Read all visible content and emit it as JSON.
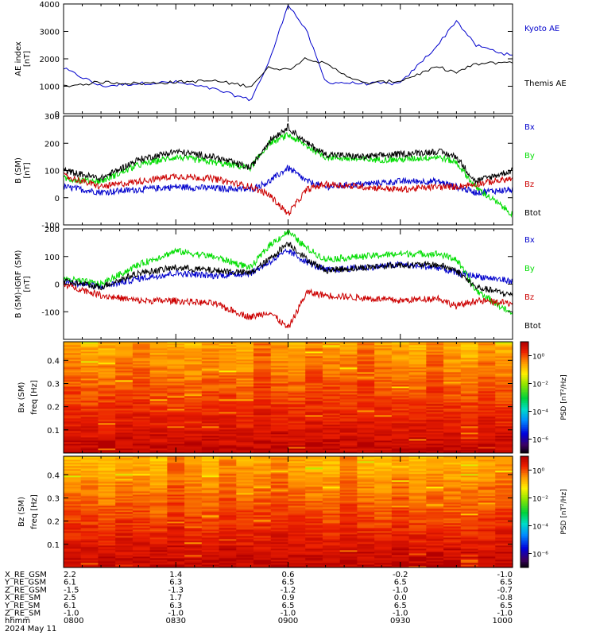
{
  "chart_data": [
    {
      "type": "line",
      "ylabel": "AE index",
      "yunit": "[nT]",
      "ylim": [
        0,
        4000
      ],
      "yticks": [
        "0",
        "1000",
        "2000",
        "3000",
        "4000"
      ],
      "x": [
        "0800",
        "0810",
        "0820",
        "0830",
        "0840",
        "0850",
        "0855",
        "0900",
        "0905",
        "0910",
        "0920",
        "0930",
        "0940",
        "0945",
        "0950",
        "1000"
      ],
      "series": [
        {
          "name": "Kyoto AE",
          "color": "#0000cc",
          "values": [
            1650,
            1000,
            1100,
            1150,
            900,
            500,
            1900,
            4000,
            3000,
            1150,
            1100,
            1100,
            2500,
            3400,
            2500,
            2100
          ]
        },
        {
          "name": "Themis AE",
          "color": "#000000",
          "values": [
            1000,
            1150,
            1100,
            1150,
            1200,
            1000,
            1700,
            1600,
            2050,
            1800,
            1100,
            1200,
            1700,
            1500,
            1800,
            1900
          ]
        }
      ]
    },
    {
      "type": "line",
      "ylabel": "B (SM)",
      "yunit": "[nT]",
      "ylim": [
        -100,
        300
      ],
      "yticks": [
        "-100",
        "0",
        "100",
        "200",
        "300"
      ],
      "x": [
        "0800",
        "0810",
        "0820",
        "0830",
        "0840",
        "0850",
        "0855",
        "0900",
        "0905",
        "0910",
        "0920",
        "0930",
        "0940",
        "0945",
        "0950",
        "1000"
      ],
      "series": [
        {
          "name": "Bx",
          "color": "#0000cc",
          "values": [
            40,
            20,
            30,
            40,
            35,
            30,
            60,
            110,
            60,
            40,
            50,
            60,
            60,
            40,
            20,
            30
          ]
        },
        {
          "name": "By",
          "color": "#00dd00",
          "values": [
            70,
            60,
            120,
            150,
            130,
            110,
            200,
            230,
            190,
            150,
            140,
            140,
            150,
            130,
            40,
            -60
          ]
        },
        {
          "name": "Bz",
          "color": "#cc0000",
          "values": [
            80,
            40,
            60,
            80,
            70,
            40,
            10,
            -60,
            30,
            50,
            40,
            30,
            40,
            40,
            50,
            70
          ]
        },
        {
          "name": "Btot",
          "color": "#000000",
          "values": [
            100,
            70,
            140,
            170,
            150,
            110,
            210,
            260,
            200,
            160,
            150,
            160,
            170,
            150,
            60,
            100
          ]
        }
      ]
    },
    {
      "type": "line",
      "ylabel": "B (SM)-IGRF (SM)",
      "yunit": "[nT]",
      "ylim": [
        -200,
        200
      ],
      "yticks": [
        "-100",
        "0",
        "100",
        "200"
      ],
      "x": [
        "0800",
        "0810",
        "0820",
        "0830",
        "0840",
        "0850",
        "0855",
        "0900",
        "0905",
        "0910",
        "0920",
        "0930",
        "0940",
        "0945",
        "0950",
        "1000"
      ],
      "series": [
        {
          "name": "Bx",
          "color": "#0000cc",
          "values": [
            10,
            -10,
            20,
            40,
            30,
            40,
            80,
            120,
            80,
            50,
            60,
            70,
            60,
            40,
            30,
            10
          ]
        },
        {
          "name": "By",
          "color": "#00dd00",
          "values": [
            20,
            0,
            70,
            120,
            100,
            60,
            140,
            190,
            130,
            90,
            100,
            110,
            110,
            90,
            -20,
            -110
          ]
        },
        {
          "name": "Bz",
          "color": "#cc0000",
          "values": [
            0,
            -40,
            -60,
            -60,
            -70,
            -120,
            -100,
            -160,
            -30,
            -40,
            -50,
            -60,
            -50,
            -80,
            -60,
            -70
          ]
        },
        {
          "name": "Btot",
          "color": "#000000",
          "values": [
            10,
            -10,
            40,
            60,
            50,
            40,
            90,
            150,
            90,
            50,
            60,
            70,
            70,
            50,
            -10,
            -40
          ]
        }
      ]
    },
    {
      "type": "heatmap",
      "ylabel": "Bx (SM)",
      "yunit2": "freq",
      "yunit": "[Hz]",
      "ylim": [
        0,
        0.48
      ],
      "yticks": [
        "0.1",
        "0.2",
        "0.3",
        "0.4"
      ],
      "colorbar_label": "PSD [nT²/Hz]",
      "colorbar_ticks": [
        "10⁰",
        "10⁻²",
        "10⁻⁴",
        "10⁻⁶"
      ],
      "colorbar_tick_exps": [
        0,
        -2,
        -4,
        -6
      ],
      "colorbar_range_exp": [
        -7,
        1
      ]
    },
    {
      "type": "heatmap",
      "ylabel": "Bz (SM)",
      "yunit2": "freq",
      "yunit": "[Hz]",
      "ylim": [
        0,
        0.48
      ],
      "yticks": [
        "0.1",
        "0.2",
        "0.3",
        "0.4"
      ],
      "colorbar_label": "PSD [nT²/Hz]",
      "colorbar_ticks": [
        "10⁰",
        "10⁻²",
        "10⁻⁴",
        "10⁻⁶"
      ],
      "colorbar_tick_exps": [
        0,
        -2,
        -4,
        -6
      ],
      "colorbar_range_exp": [
        -7,
        1
      ]
    }
  ],
  "orbit_table": {
    "labels": [
      "X_RE_GSM",
      "Y_RE_GSM",
      "Z_RE_GSM",
      "X_RE_SM",
      "Y_RE_SM",
      "Z_RE_SM",
      "hhmm"
    ],
    "columns": [
      [
        "2.2",
        "6.1",
        "-1.5",
        "2.5",
        "6.1",
        "-1.0",
        "0800"
      ],
      [
        "1.4",
        "6.3",
        "-1.3",
        "1.7",
        "6.3",
        "-1.0",
        "0830"
      ],
      [
        "0.6",
        "6.5",
        "-1.2",
        "0.9",
        "6.5",
        "-1.0",
        "0900"
      ],
      [
        "-0.2",
        "6.5",
        "-1.0",
        "0.0",
        "6.5",
        "-1.0",
        "0930"
      ],
      [
        "-1.0",
        "6.5",
        "-0.7",
        "-0.8",
        "6.5",
        "-1.0",
        "1000"
      ]
    ],
    "date": "2024 May 11"
  }
}
